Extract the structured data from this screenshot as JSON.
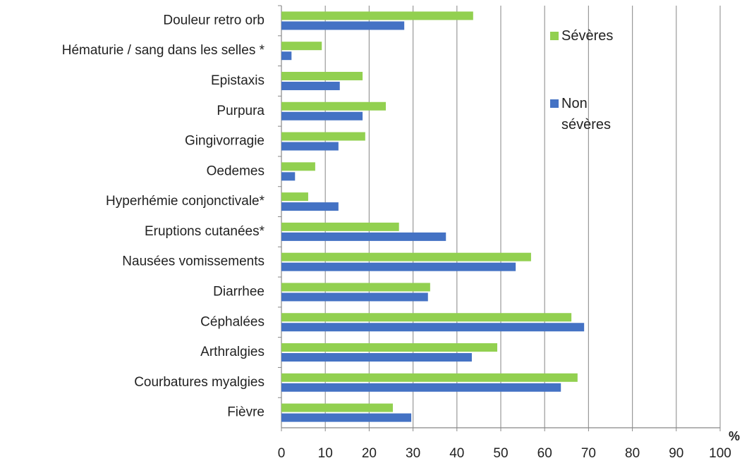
{
  "chart_data": {
    "type": "hbar",
    "x_label": "%",
    "categories": [
      "Douleur retro orb",
      "Hématurie / sang dans les selles *",
      "Epistaxis",
      "Purpura",
      "Gingivorragie",
      "Oedemes",
      "Hyperhémie conjonctivale*",
      "Eruptions cutanées*",
      "Nausées vomissements",
      "Diarrhee",
      "Céphalées",
      "Arthralgies",
      "Courbatures myalgies",
      "Fièvre"
    ],
    "series": [
      {
        "name": "Sévères",
        "color": "#92d050",
        "values": [
          43.7,
          9.2,
          18.5,
          23.8,
          19.1,
          7.7,
          6.1,
          26.8,
          56.9,
          33.9,
          66.1,
          49.2,
          67.5,
          25.4
        ]
      },
      {
        "name": "Non sévères",
        "color": "#4472c4",
        "values": [
          28,
          2.3,
          13.3,
          18.5,
          13,
          3.1,
          13,
          37.5,
          53.4,
          33.4,
          69,
          43.4,
          63.7,
          29.6
        ]
      }
    ],
    "xlim": [
      0,
      100
    ],
    "xticks": [
      0,
      10,
      20,
      30,
      40,
      50,
      60,
      70,
      80,
      90,
      100
    ],
    "grid": true
  }
}
